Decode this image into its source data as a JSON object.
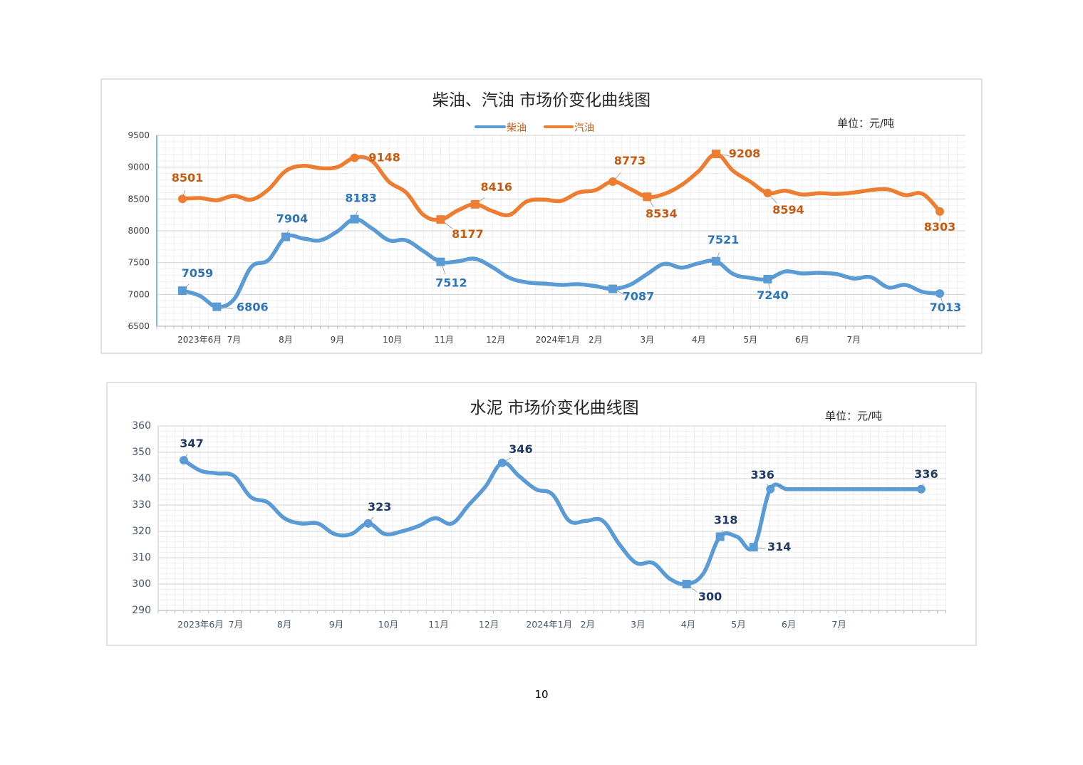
{
  "page_number": "10",
  "colors": {
    "diesel": "#5b9bd5",
    "diesel_label": "#2e75b6",
    "gasoline": "#ed7d31",
    "gasoline_label": "#c55a11",
    "cement": "#5b9bd5",
    "cement_label": "#203864"
  },
  "chart_data": [
    {
      "type": "line",
      "title": "柴油、汽油 市场价变化曲线图",
      "unit": "单位：元/吨",
      "ylim": [
        6500,
        9500
      ],
      "yticks": [
        "9500",
        "9000",
        "8500",
        "8000",
        "7500",
        "7000",
        "6500"
      ],
      "ytick_values": [
        9500,
        9000,
        8500,
        8000,
        7500,
        7000,
        6500
      ],
      "grid": true,
      "legend_placement": "top-center",
      "xtick_labels": [
        {
          "label": "2023年6月",
          "at": 1
        },
        {
          "label": "7月",
          "at": 3
        },
        {
          "label": "8月",
          "at": 6
        },
        {
          "label": "9月",
          "at": 9
        },
        {
          "label": "10月",
          "at": 12.2
        },
        {
          "label": "11月",
          "at": 15.2
        },
        {
          "label": "12月",
          "at": 18.2
        },
        {
          "label": "2024年1月",
          "at": 21.8
        },
        {
          "label": "2月",
          "at": 24
        },
        {
          "label": "3月",
          "at": 27
        },
        {
          "label": "4月",
          "at": 30
        },
        {
          "label": "5月",
          "at": 33
        },
        {
          "label": "6月",
          "at": 36
        },
        {
          "label": "7月",
          "at": 39
        }
      ],
      "series": [
        {
          "name": "柴油",
          "key": "diesel",
          "values": [
            7059,
            6980,
            6806,
            6925,
            7430,
            7540,
            7904,
            7880,
            7850,
            7990,
            8183,
            8040,
            7850,
            7850,
            7680,
            7512,
            7520,
            7560,
            7430,
            7260,
            7190,
            7170,
            7150,
            7160,
            7130,
            7087,
            7150,
            7320,
            7480,
            7420,
            7490,
            7521,
            7320,
            7260,
            7240,
            7360,
            7330,
            7340,
            7320,
            7250,
            7270,
            7110,
            7150,
            7040,
            7013
          ],
          "annotations": [
            {
              "index": 0,
              "text": "7059",
              "marker": "square"
            },
            {
              "index": 2,
              "text": "6806",
              "marker": "square"
            },
            {
              "index": 6,
              "text": "7904",
              "marker": "square"
            },
            {
              "index": 10,
              "text": "8183",
              "marker": "square"
            },
            {
              "index": 15,
              "text": "7512",
              "marker": "square"
            },
            {
              "index": 25,
              "text": "7087",
              "marker": "square"
            },
            {
              "index": 31,
              "text": "7521",
              "marker": "square"
            },
            {
              "index": 34,
              "text": "7240",
              "marker": "square"
            },
            {
              "index": 44,
              "text": "7013",
              "marker": "circle"
            }
          ]
        },
        {
          "name": "汽油",
          "key": "gasoline",
          "values": [
            8501,
            8515,
            8480,
            8550,
            8490,
            8650,
            8940,
            9020,
            8985,
            9000,
            9148,
            9100,
            8770,
            8600,
            8250,
            8177,
            8320,
            8416,
            8310,
            8250,
            8460,
            8490,
            8470,
            8600,
            8640,
            8773,
            8660,
            8534,
            8580,
            8720,
            8940,
            9208,
            8940,
            8770,
            8594,
            8630,
            8570,
            8590,
            8580,
            8600,
            8640,
            8650,
            8560,
            8580,
            8303
          ],
          "annotations": [
            {
              "index": 0,
              "text": "8501",
              "marker": "circle"
            },
            {
              "index": 10,
              "text": "9148",
              "marker": "circle"
            },
            {
              "index": 15,
              "text": "8177",
              "marker": "square"
            },
            {
              "index": 17,
              "text": "8416",
              "marker": "square"
            },
            {
              "index": 25,
              "text": "8773",
              "marker": "circle"
            },
            {
              "index": 27,
              "text": "8534",
              "marker": "square"
            },
            {
              "index": 31,
              "text": "9208",
              "marker": "square"
            },
            {
              "index": 34,
              "text": "8594",
              "marker": "circle"
            },
            {
              "index": 44,
              "text": "8303",
              "marker": "circle"
            }
          ]
        }
      ]
    },
    {
      "type": "line",
      "title": "水泥 市场价变化曲线图",
      "unit": "单位：元/吨",
      "ylim": [
        290,
        360
      ],
      "yticks": [
        "360",
        "350",
        "340",
        "330",
        "320",
        "310",
        "300",
        "290"
      ],
      "ytick_values": [
        360,
        350,
        340,
        330,
        320,
        310,
        300,
        290
      ],
      "grid": true,
      "xtick_labels": [
        {
          "label": "2023年6月",
          "at": 1
        },
        {
          "label": "7月",
          "at": 3.1
        },
        {
          "label": "8月",
          "at": 6
        },
        {
          "label": "9月",
          "at": 9.1
        },
        {
          "label": "10月",
          "at": 12.2
        },
        {
          "label": "11月",
          "at": 15.2
        },
        {
          "label": "12月",
          "at": 18.2
        },
        {
          "label": "2024年1月",
          "at": 21.8
        },
        {
          "label": "2月",
          "at": 24.1
        },
        {
          "label": "3月",
          "at": 27.1
        },
        {
          "label": "4月",
          "at": 30.1
        },
        {
          "label": "5月",
          "at": 33.1
        },
        {
          "label": "6月",
          "at": 36.1
        },
        {
          "label": "7月",
          "at": 39.1
        }
      ],
      "series": [
        {
          "name": "水泥",
          "key": "cement",
          "values": [
            347,
            343,
            342,
            341,
            333,
            331,
            325,
            323,
            323,
            319,
            319,
            323,
            319,
            320,
            322,
            325,
            323,
            330,
            337,
            346,
            341,
            336,
            334,
            324,
            324,
            324,
            315,
            308,
            308,
            302,
            300,
            304,
            318,
            318,
            314,
            336,
            336,
            336,
            336,
            336,
            336,
            336,
            336,
            336,
            336
          ],
          "annotations": [
            {
              "index": 0,
              "text": "347",
              "marker": "circle"
            },
            {
              "index": 11,
              "text": "323",
              "marker": "circle"
            },
            {
              "index": 19,
              "text": "346",
              "marker": "circle"
            },
            {
              "index": 30,
              "text": "300",
              "marker": "square"
            },
            {
              "index": 32,
              "text": "318",
              "marker": "square"
            },
            {
              "index": 34,
              "text": "314",
              "marker": "square"
            },
            {
              "index": 35,
              "text": "336",
              "marker": "circle"
            },
            {
              "index": 44,
              "text": "336",
              "marker": "circle"
            }
          ]
        }
      ]
    }
  ]
}
